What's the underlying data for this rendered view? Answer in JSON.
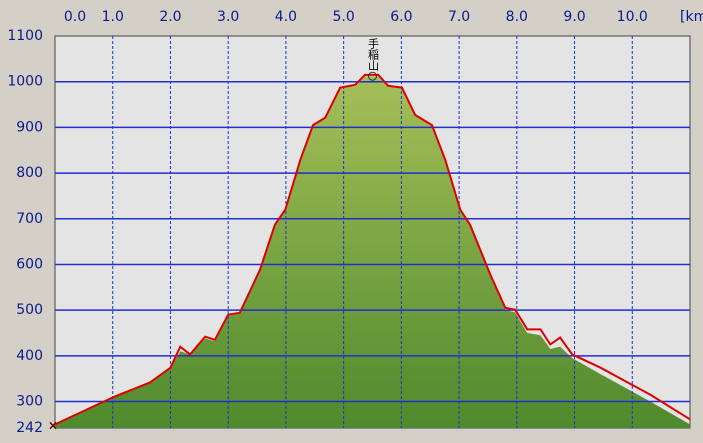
{
  "chart_data": {
    "type": "area",
    "x_label": "[km]",
    "annotation": {
      "text": "手稲山",
      "x": 5.5
    },
    "x": [
      0,
      1.0,
      1.65,
      2.0,
      2.17,
      2.34,
      2.6,
      2.77,
      3.0,
      3.2,
      3.55,
      3.81,
      3.99,
      4.25,
      4.47,
      4.68,
      4.94,
      5.2,
      5.37,
      5.6,
      5.77,
      6.01,
      6.24,
      6.53,
      6.76,
      7.02,
      7.19,
      7.54,
      7.8,
      7.97,
      8.18,
      8.41,
      8.58,
      8.75,
      8.96,
      9.45,
      10.31,
      11.0
    ],
    "series": [
      {
        "color": "#4f8a2d",
        "fill": true,
        "values": [
          250,
          309,
          342,
          374,
          410,
          403,
          438,
          432,
          488,
          492,
          586,
          685,
          718,
          827,
          903,
          919,
          985,
          991,
          1012,
          1012,
          989,
          985,
          925,
          903,
          827,
          718,
          685,
          576,
          500,
          495,
          450,
          445,
          415,
          420,
          395,
          360,
          300,
          250
        ]
      },
      {
        "color": "#e00000",
        "values": [
          250,
          309,
          342,
          374,
          420,
          403,
          442,
          435,
          490,
          494,
          588,
          687,
          720,
          829,
          905,
          921,
          987,
          993,
          1015,
          1015,
          991,
          987,
          927,
          905,
          829,
          720,
          687,
          578,
          505,
          501,
          458,
          458,
          425,
          440,
          403,
          374,
          315,
          261
        ]
      }
    ],
    "xlim": [
      0,
      11
    ],
    "xticks": [
      {
        "value": 0,
        "label": "0.0"
      },
      {
        "value": 1,
        "label": "1.0"
      },
      {
        "value": 2,
        "label": "2.0"
      },
      {
        "value": 3,
        "label": "3.0"
      },
      {
        "value": 4,
        "label": "4.0"
      },
      {
        "value": 5,
        "label": "5.0"
      },
      {
        "value": 6,
        "label": "6.0"
      },
      {
        "value": 7,
        "label": "7.0"
      },
      {
        "value": 8,
        "label": "8.0"
      },
      {
        "value": 9,
        "label": "9.0"
      },
      {
        "value": 10,
        "label": "10.0"
      }
    ],
    "ylim": [
      242,
      1100
    ],
    "yticks": [
      242,
      300,
      400,
      500,
      600,
      700,
      800,
      900,
      1000,
      1100
    ],
    "grid": true,
    "grid_color": "#1f2fd0"
  }
}
